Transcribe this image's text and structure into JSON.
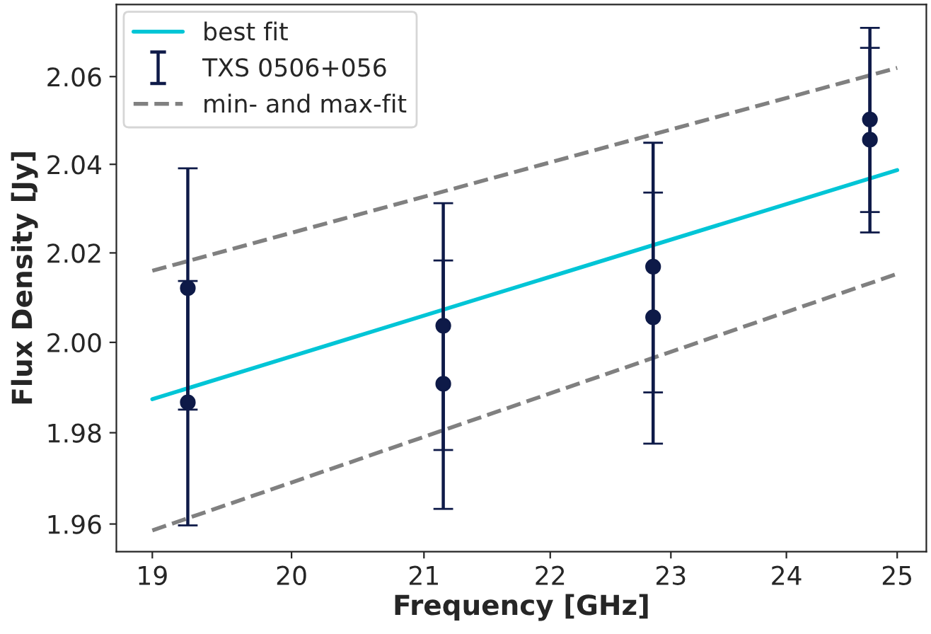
{
  "chart_data": {
    "type": "scatter",
    "xlabel": "Frequency [GHz]",
    "ylabel": "Flux Density [Jy]",
    "log": "xy",
    "xlim": [
      18.75,
      25.27
    ],
    "ylim": [
      1.954,
      2.0766
    ],
    "xticks": [
      19,
      20,
      21,
      22,
      23,
      24,
      25
    ],
    "yticks": [
      1.96,
      1.98,
      {
        "value": 2.0,
        "label": "2.00"
      },
      2.02,
      2.04,
      2.06
    ],
    "grid": false,
    "legend": "top left",
    "series": [
      {
        "name": "best fit",
        "type": "line",
        "color": "#00c5d6",
        "line_style": "solid",
        "marker": "none",
        "x": [
          19,
          25
        ],
        "values": [
          1.9874,
          2.0387
        ]
      },
      {
        "name": "TXS 0506+056",
        "color": "#0e1a48",
        "marker": "circle",
        "x": [
          19.25,
          19.25,
          21.15,
          21.15,
          22.85,
          22.85,
          24.75,
          24.75
        ],
        "values": [
          2.0121,
          1.9867,
          2.0037,
          1.9908,
          2.0169,
          2.0056,
          2.0502,
          2.0456
        ],
        "errors": [
          0.027,
          0.027,
          0.0275,
          0.0275,
          0.028,
          0.028,
          0.021,
          0.021
        ]
      },
      {
        "name": "min- and max-fit",
        "type": "line",
        "color": "#808080",
        "line_style": "dashed",
        "marker": "none",
        "x": [
          19,
          25
        ],
        "values": [
          2.016,
          2.062
        ]
      },
      {
        "type": "line",
        "color": "#808080",
        "line_style": "dashed",
        "marker": "none",
        "x": [
          19,
          25
        ],
        "values": [
          1.9586,
          2.0153
        ]
      }
    ]
  }
}
